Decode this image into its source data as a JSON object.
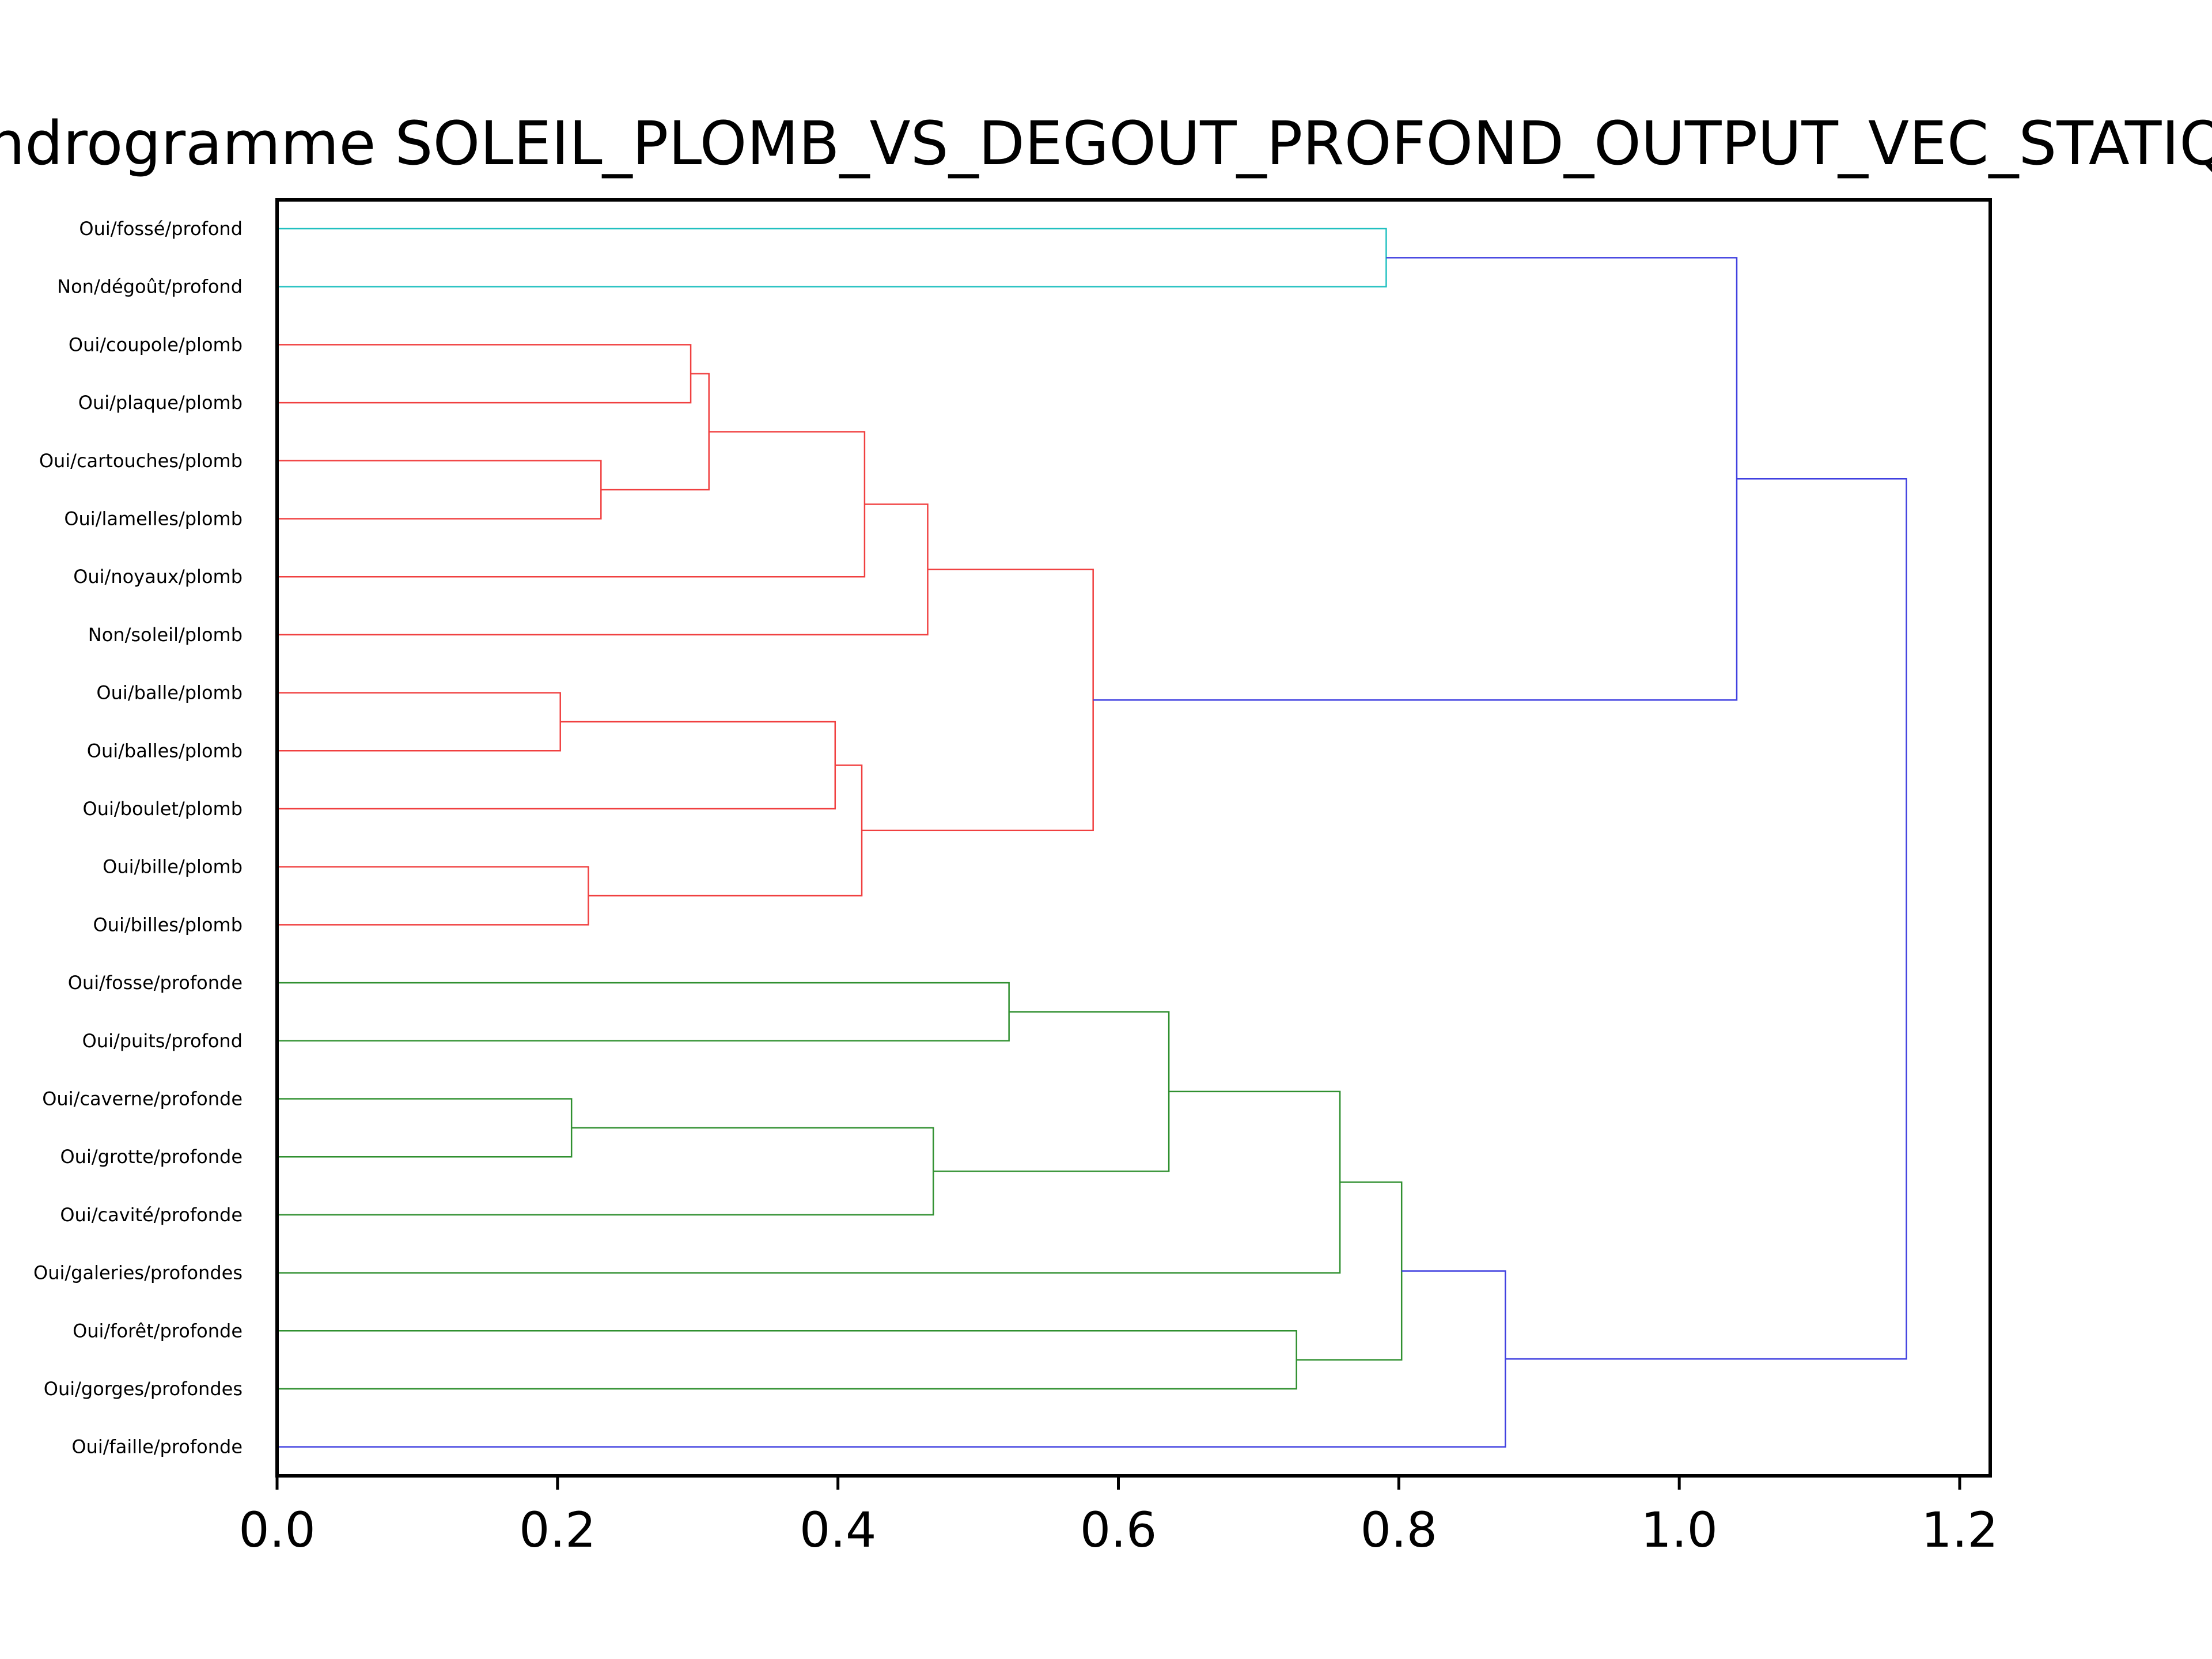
{
  "chart_data": {
    "type": "dendrogram",
    "orientation": "horizontal",
    "title": "Dendrogramme SOLEIL_PLOMB_VS_DEGOUT_PROFOND_OUTPUT_VEC_STATIQUE",
    "xlabel": "",
    "ylabel": "",
    "xlim": [
      0,
      1.22
    ],
    "xticks": [
      "0.0",
      "0.2",
      "0.4",
      "0.6",
      "0.8",
      "1.0",
      "1.2"
    ],
    "xtick_values": [
      0,
      0.2,
      0.4,
      0.6,
      0.8,
      1.0,
      1.2
    ],
    "grid": false,
    "colors": {
      "cyan": "#20c0c0",
      "red": "#f04040",
      "green": "#309030",
      "blue": "#4040e0",
      "axis": "#000000"
    },
    "leaves": [
      "Oui/fossé/profond",
      "Non/dégoût/profond",
      "Oui/coupole/plomb",
      "Oui/plaque/plomb",
      "Oui/cartouches/plomb",
      "Oui/lamelles/plomb",
      "Oui/noyaux/plomb",
      "Non/soleil/plomb",
      "Oui/balle/plomb",
      "Oui/balles/plomb",
      "Oui/boulet/plomb",
      "Oui/bille/plomb",
      "Oui/billes/plomb",
      "Oui/fosse/profonde",
      "Oui/puits/profond",
      "Oui/caverne/profonde",
      "Oui/grotte/profonde",
      "Oui/cavité/profonde",
      "Oui/galeries/profondes",
      "Oui/forêt/profonde",
      "Oui/gorges/profondes",
      "Oui/faille/profonde"
    ],
    "merges": [
      {
        "id": "c1",
        "a": "L0",
        "b": "L1",
        "height": 0.791,
        "color": "cyan"
      },
      {
        "id": "c2",
        "a": "L2",
        "b": "L3",
        "height": 0.295,
        "color": "red"
      },
      {
        "id": "c3",
        "a": "L4",
        "b": "L5",
        "height": 0.231,
        "color": "red"
      },
      {
        "id": "c4",
        "a": "c2",
        "b": "c3",
        "height": 0.308,
        "color": "red"
      },
      {
        "id": "c5",
        "a": "c4",
        "b": "L6",
        "height": 0.419,
        "color": "red"
      },
      {
        "id": "c6",
        "a": "c5",
        "b": "L7",
        "height": 0.464,
        "color": "red"
      },
      {
        "id": "c7",
        "a": "L8",
        "b": "L9",
        "height": 0.202,
        "color": "red"
      },
      {
        "id": "c8",
        "a": "c7",
        "b": "L10",
        "height": 0.398,
        "color": "red"
      },
      {
        "id": "c9",
        "a": "L11",
        "b": "L12",
        "height": 0.222,
        "color": "red"
      },
      {
        "id": "c10",
        "a": "c8",
        "b": "c9",
        "height": 0.417,
        "color": "red"
      },
      {
        "id": "c11",
        "a": "c6",
        "b": "c10",
        "height": 0.582,
        "color": "red"
      },
      {
        "id": "c12",
        "a": "c1",
        "b": "c11",
        "height": 1.041,
        "color": "blue"
      },
      {
        "id": "c13",
        "a": "L13",
        "b": "L14",
        "height": 0.522,
        "color": "green"
      },
      {
        "id": "c14",
        "a": "L15",
        "b": "L16",
        "height": 0.21,
        "color": "green"
      },
      {
        "id": "c15",
        "a": "c14",
        "b": "L17",
        "height": 0.468,
        "color": "green"
      },
      {
        "id": "c16",
        "a": "c13",
        "b": "c15",
        "height": 0.636,
        "color": "green"
      },
      {
        "id": "c17",
        "a": "c16",
        "b": "L18",
        "height": 0.758,
        "color": "green"
      },
      {
        "id": "c18",
        "a": "L19",
        "b": "L20",
        "height": 0.727,
        "color": "green"
      },
      {
        "id": "c19",
        "a": "c17",
        "b": "c18",
        "height": 0.802,
        "color": "green"
      },
      {
        "id": "c20",
        "a": "c19",
        "b": "L21",
        "height": 0.876,
        "color": "blue"
      },
      {
        "id": "c21",
        "a": "c12",
        "b": "c20",
        "height": 1.162,
        "color": "blue"
      }
    ]
  }
}
